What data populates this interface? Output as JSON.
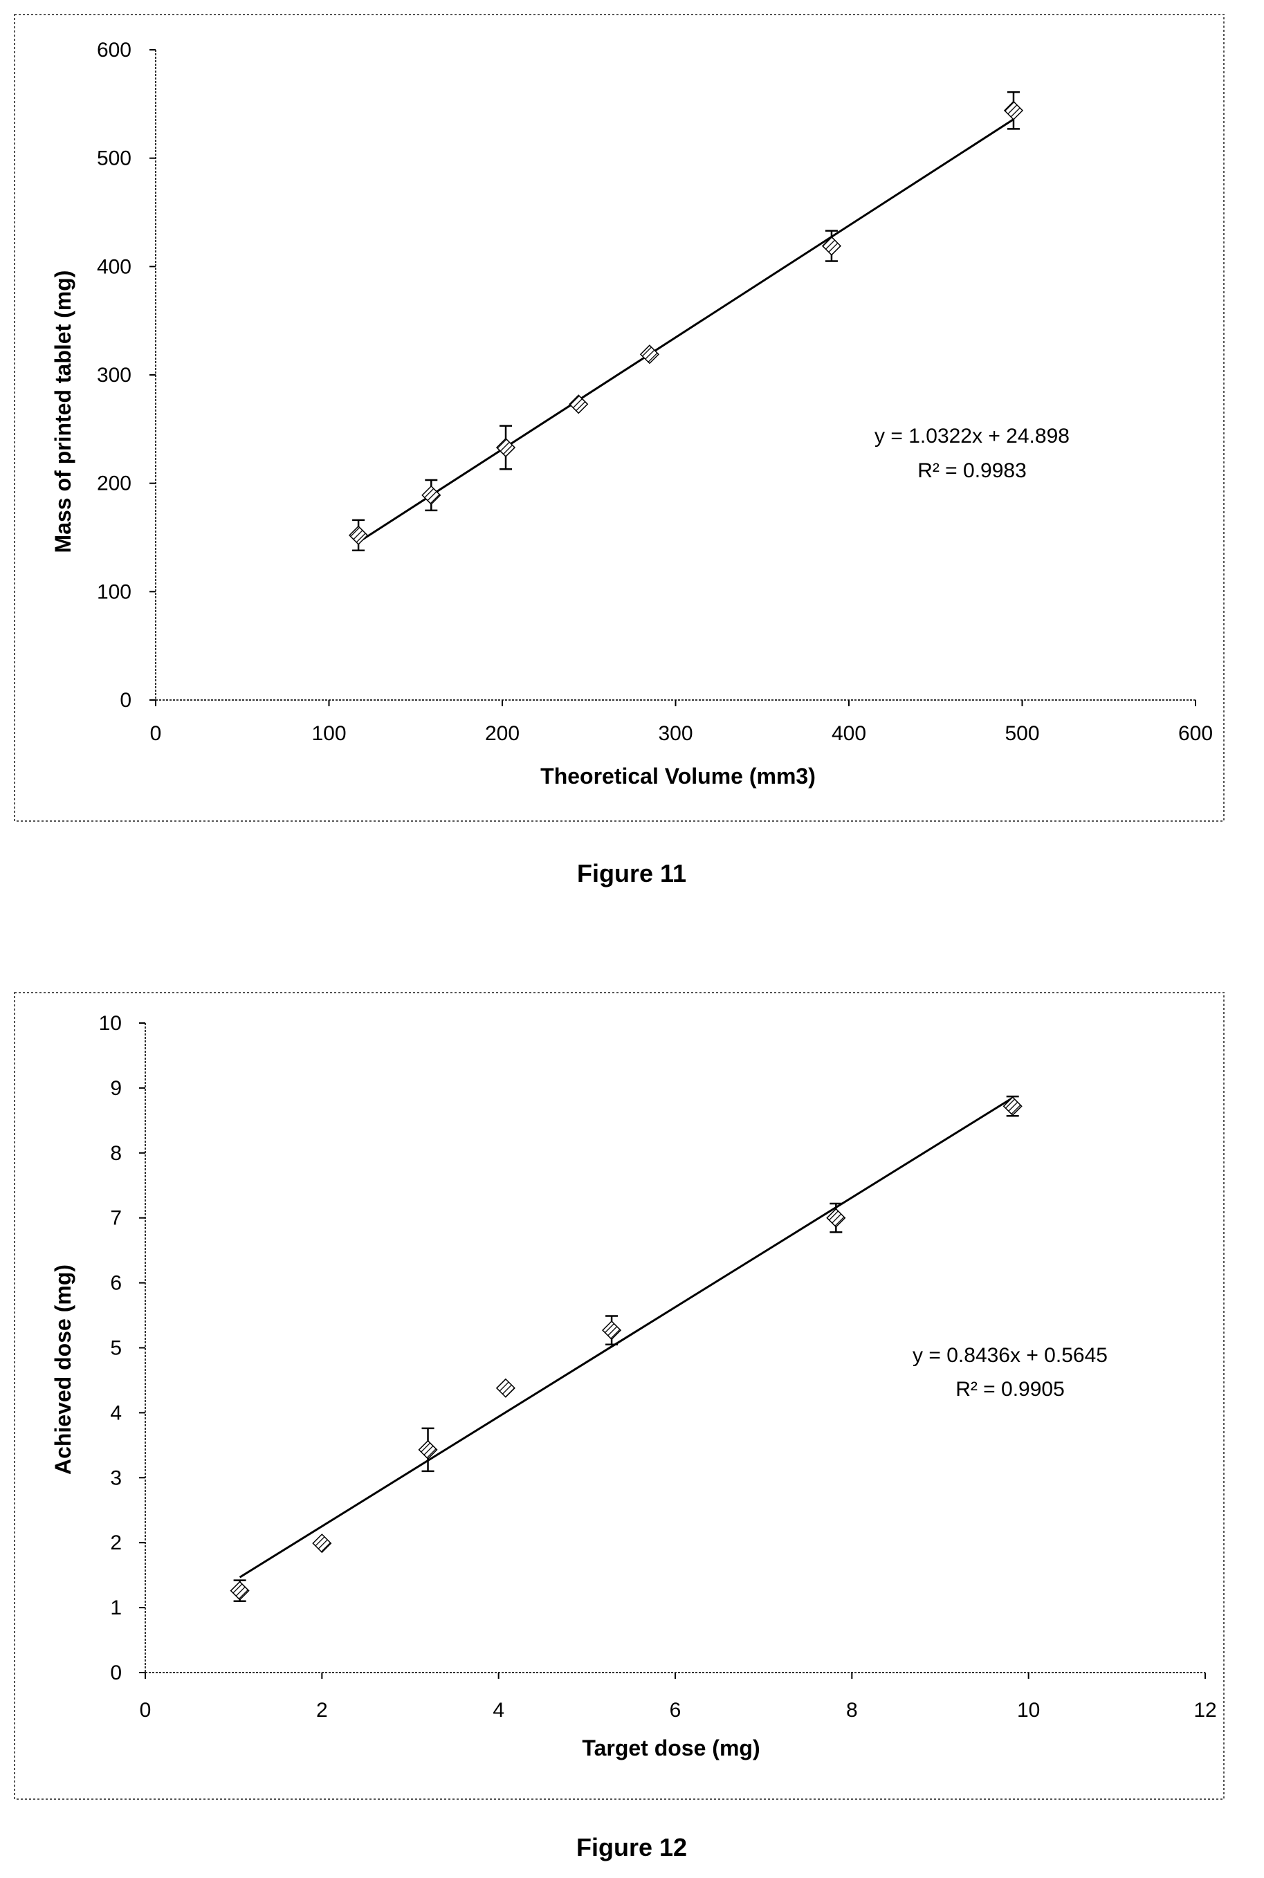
{
  "chart_data": [
    {
      "type": "scatter",
      "caption": "Figure 11",
      "xlabel": "Theoretical Volume (mm3)",
      "ylabel": "Mass of printed tablet (mg)",
      "xlim": [
        0,
        600
      ],
      "ylim": [
        0,
        600
      ],
      "xticks": [
        0,
        100,
        200,
        300,
        400,
        500,
        600
      ],
      "yticks": [
        0,
        100,
        200,
        300,
        400,
        500,
        600
      ],
      "grid": false,
      "marker": "hatched-diamond",
      "series": [
        {
          "x": [
            117,
            159,
            202,
            244,
            285,
            390,
            495
          ],
          "y": [
            152,
            189,
            233,
            273,
            319,
            419,
            544
          ],
          "yerr": [
            14,
            14,
            20,
            0,
            0,
            14,
            17
          ]
        }
      ],
      "trendline": {
        "slope": 1.0322,
        "intercept": 24.898,
        "x_range": [
          117,
          495
        ]
      },
      "annotation": {
        "equation": "y = 1.0322x + 24.898",
        "r2": "R² = 0.9983"
      }
    },
    {
      "type": "scatter",
      "caption": "Figure 12",
      "xlabel": "Target dose (mg)",
      "ylabel": "Achieved dose (mg)",
      "xlim": [
        0,
        12
      ],
      "ylim": [
        0,
        10
      ],
      "xticks": [
        0,
        2,
        4,
        6,
        8,
        10,
        12
      ],
      "yticks": [
        0,
        1,
        2,
        3,
        4,
        5,
        6,
        7,
        8,
        9,
        10
      ],
      "grid": false,
      "marker": "hatched-diamond",
      "series": [
        {
          "x": [
            1.07,
            2.0,
            3.2,
            4.08,
            5.28,
            7.82,
            9.82
          ],
          "y": [
            1.26,
            1.99,
            3.43,
            4.38,
            5.27,
            7.0,
            8.72
          ],
          "yerr": [
            0.16,
            0.0,
            0.33,
            0.0,
            0.22,
            0.22,
            0.15
          ]
        }
      ],
      "trendline": {
        "slope": 0.8436,
        "intercept": 0.5645,
        "x_range": [
          1.07,
          9.82
        ]
      },
      "annotation": {
        "equation": "y = 0.8436x + 0.5645",
        "r2": "R² = 0.9905"
      }
    }
  ]
}
